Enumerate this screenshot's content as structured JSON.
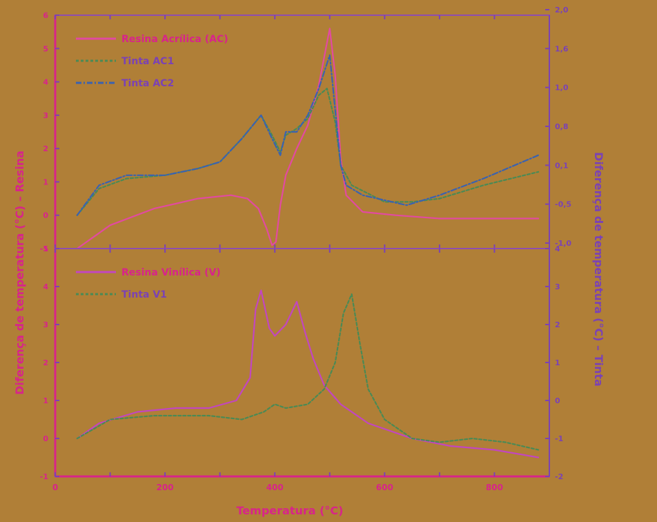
{
  "chart_data": [
    {
      "panel": "top",
      "type": "line",
      "xlim": [
        0,
        900
      ],
      "ylim_left": [
        -1,
        6
      ],
      "ylim_right": [
        -1.0,
        2.0
      ],
      "y_ticks_left": [
        -1,
        0,
        1,
        2,
        3,
        4,
        5,
        6
      ],
      "y_ticks_right": [
        "-1,0",
        "-0,5",
        "0,1",
        "0,8",
        "1,0",
        "1,6",
        "2,0"
      ],
      "legend": "top-left",
      "grid": false,
      "series": [
        {
          "name": "Resina Acrílica (AC)",
          "axis": "left",
          "color": "#e24aa1",
          "points": [
            [
              40,
              -1.0
            ],
            [
              100,
              -0.3
            ],
            [
              180,
              0.2
            ],
            [
              260,
              0.5
            ],
            [
              320,
              0.6
            ],
            [
              350,
              0.5
            ],
            [
              370,
              0.2
            ],
            [
              385,
              -0.4
            ],
            [
              395,
              -0.9
            ],
            [
              402,
              -0.8
            ],
            [
              410,
              0.3
            ],
            [
              420,
              1.2
            ],
            [
              440,
              2.0
            ],
            [
              460,
              2.7
            ],
            [
              480,
              3.9
            ],
            [
              500,
              5.6
            ],
            [
              510,
              4.2
            ],
            [
              520,
              1.7
            ],
            [
              530,
              0.6
            ],
            [
              560,
              0.1
            ],
            [
              620,
              0.0
            ],
            [
              700,
              -0.1
            ],
            [
              780,
              -0.1
            ],
            [
              880,
              -0.1
            ]
          ]
        },
        {
          "name": "Tinta AC1",
          "axis": "left",
          "color": "#4a8a55",
          "points": [
            [
              40,
              0.0
            ],
            [
              80,
              0.8
            ],
            [
              130,
              1.1
            ],
            [
              200,
              1.2
            ],
            [
              260,
              1.4
            ],
            [
              300,
              1.6
            ],
            [
              340,
              2.3
            ],
            [
              375,
              3.0
            ],
            [
              395,
              2.4
            ],
            [
              410,
              1.9
            ],
            [
              420,
              2.4
            ],
            [
              440,
              2.6
            ],
            [
              460,
              2.9
            ],
            [
              480,
              3.6
            ],
            [
              495,
              3.8
            ],
            [
              510,
              2.8
            ],
            [
              520,
              1.5
            ],
            [
              540,
              0.9
            ],
            [
              600,
              0.4
            ],
            [
              650,
              0.4
            ],
            [
              700,
              0.5
            ],
            [
              780,
              0.9
            ],
            [
              880,
              1.3
            ]
          ]
        },
        {
          "name": "Tinta AC2",
          "axis": "left",
          "color": "#3a62b0",
          "points": [
            [
              40,
              0.0
            ],
            [
              80,
              0.9
            ],
            [
              130,
              1.2
            ],
            [
              200,
              1.2
            ],
            [
              260,
              1.4
            ],
            [
              300,
              1.6
            ],
            [
              340,
              2.3
            ],
            [
              375,
              3.0
            ],
            [
              395,
              2.3
            ],
            [
              410,
              1.8
            ],
            [
              420,
              2.5
            ],
            [
              440,
              2.5
            ],
            [
              460,
              3.0
            ],
            [
              480,
              3.8
            ],
            [
              500,
              4.8
            ],
            [
              520,
              1.5
            ],
            [
              530,
              0.9
            ],
            [
              560,
              0.6
            ],
            [
              640,
              0.3
            ],
            [
              700,
              0.6
            ],
            [
              780,
              1.1
            ],
            [
              880,
              1.8
            ]
          ]
        }
      ]
    },
    {
      "panel": "bottom",
      "type": "line",
      "xlim": [
        0,
        900
      ],
      "x_ticks": [
        0,
        200,
        400,
        600,
        800
      ],
      "ylim_left": [
        -1,
        5
      ],
      "ylim_right": [
        -2,
        5
      ],
      "y_ticks_left": [
        -1,
        0,
        1,
        2,
        3,
        4,
        5
      ],
      "y_ticks_right": [
        -2,
        -1,
        0,
        1,
        2,
        3,
        4
      ],
      "legend": "top-left",
      "grid": false,
      "series": [
        {
          "name": "Resina Vinílica (V)",
          "axis": "left",
          "color": "#c246c0",
          "points": [
            [
              40,
              0.0
            ],
            [
              80,
              0.4
            ],
            [
              150,
              0.7
            ],
            [
              220,
              0.8
            ],
            [
              280,
              0.8
            ],
            [
              330,
              1.0
            ],
            [
              355,
              1.6
            ],
            [
              365,
              3.4
            ],
            [
              375,
              3.9
            ],
            [
              390,
              2.9
            ],
            [
              400,
              2.7
            ],
            [
              420,
              3.0
            ],
            [
              440,
              3.6
            ],
            [
              455,
              2.8
            ],
            [
              470,
              2.1
            ],
            [
              490,
              1.4
            ],
            [
              520,
              0.9
            ],
            [
              570,
              0.4
            ],
            [
              650,
              0.0
            ],
            [
              720,
              -0.2
            ],
            [
              800,
              -0.3
            ],
            [
              880,
              -0.5
            ]
          ]
        },
        {
          "name": "Tinta V1",
          "axis": "left",
          "color": "#4a8a55",
          "points": [
            [
              40,
              0.0
            ],
            [
              100,
              0.5
            ],
            [
              180,
              0.6
            ],
            [
              280,
              0.6
            ],
            [
              340,
              0.5
            ],
            [
              380,
              0.7
            ],
            [
              400,
              0.9
            ],
            [
              420,
              0.8
            ],
            [
              460,
              0.9
            ],
            [
              490,
              1.3
            ],
            [
              510,
              2.0
            ],
            [
              525,
              3.3
            ],
            [
              540,
              3.8
            ],
            [
              555,
              2.5
            ],
            [
              570,
              1.3
            ],
            [
              600,
              0.5
            ],
            [
              650,
              0.0
            ],
            [
              700,
              -0.1
            ],
            [
              760,
              0.0
            ],
            [
              820,
              -0.1
            ],
            [
              880,
              -0.3
            ]
          ]
        }
      ]
    }
  ],
  "labels": {
    "xlabel": "Temperatura (°C)",
    "ylabel_left": "Diferença de temperatura (°C) – Resina",
    "ylabel_right": "Diferença de temperatura (°C) – Tinta"
  }
}
